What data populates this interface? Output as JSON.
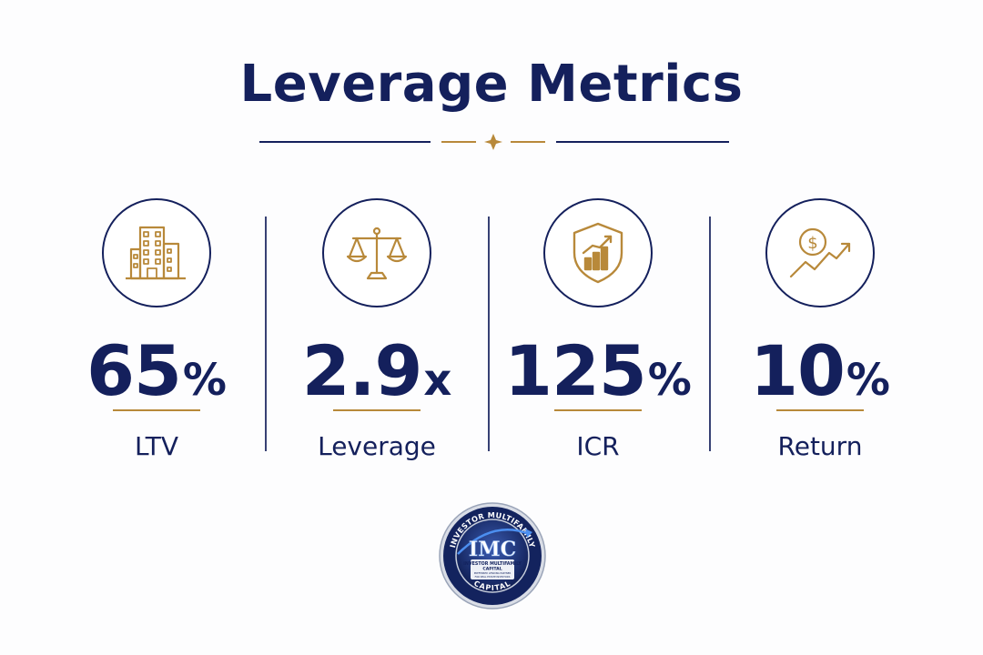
{
  "title": "Leverage Metrics",
  "colors": {
    "navy": "#14205c",
    "gold": "#b8893a"
  },
  "metrics": [
    {
      "value": "65",
      "unit": "%",
      "label": "LTV",
      "icon": "office-building-icon"
    },
    {
      "value": "2.9",
      "unit": "x",
      "label": "Leverage",
      "icon": "balance-scale-icon"
    },
    {
      "value": "125",
      "unit": "%",
      "label": "ICR",
      "icon": "shield-growth-chart-icon"
    },
    {
      "value": "10",
      "unit": "%",
      "label": "Return",
      "icon": "dollar-growth-arrow-icon"
    }
  ],
  "logo": {
    "top_text": "INVESTOR MULTIFAMILY",
    "monogram": "IMC",
    "name": "INVESTOR MULTIFAMILY",
    "subname": "CAPITAL",
    "tagline1": "PREFERRED LENDING PARTNER",
    "tagline2": "FOR REAL ESTATE INVESTORS",
    "bottom_text": "CAPITAL"
  }
}
